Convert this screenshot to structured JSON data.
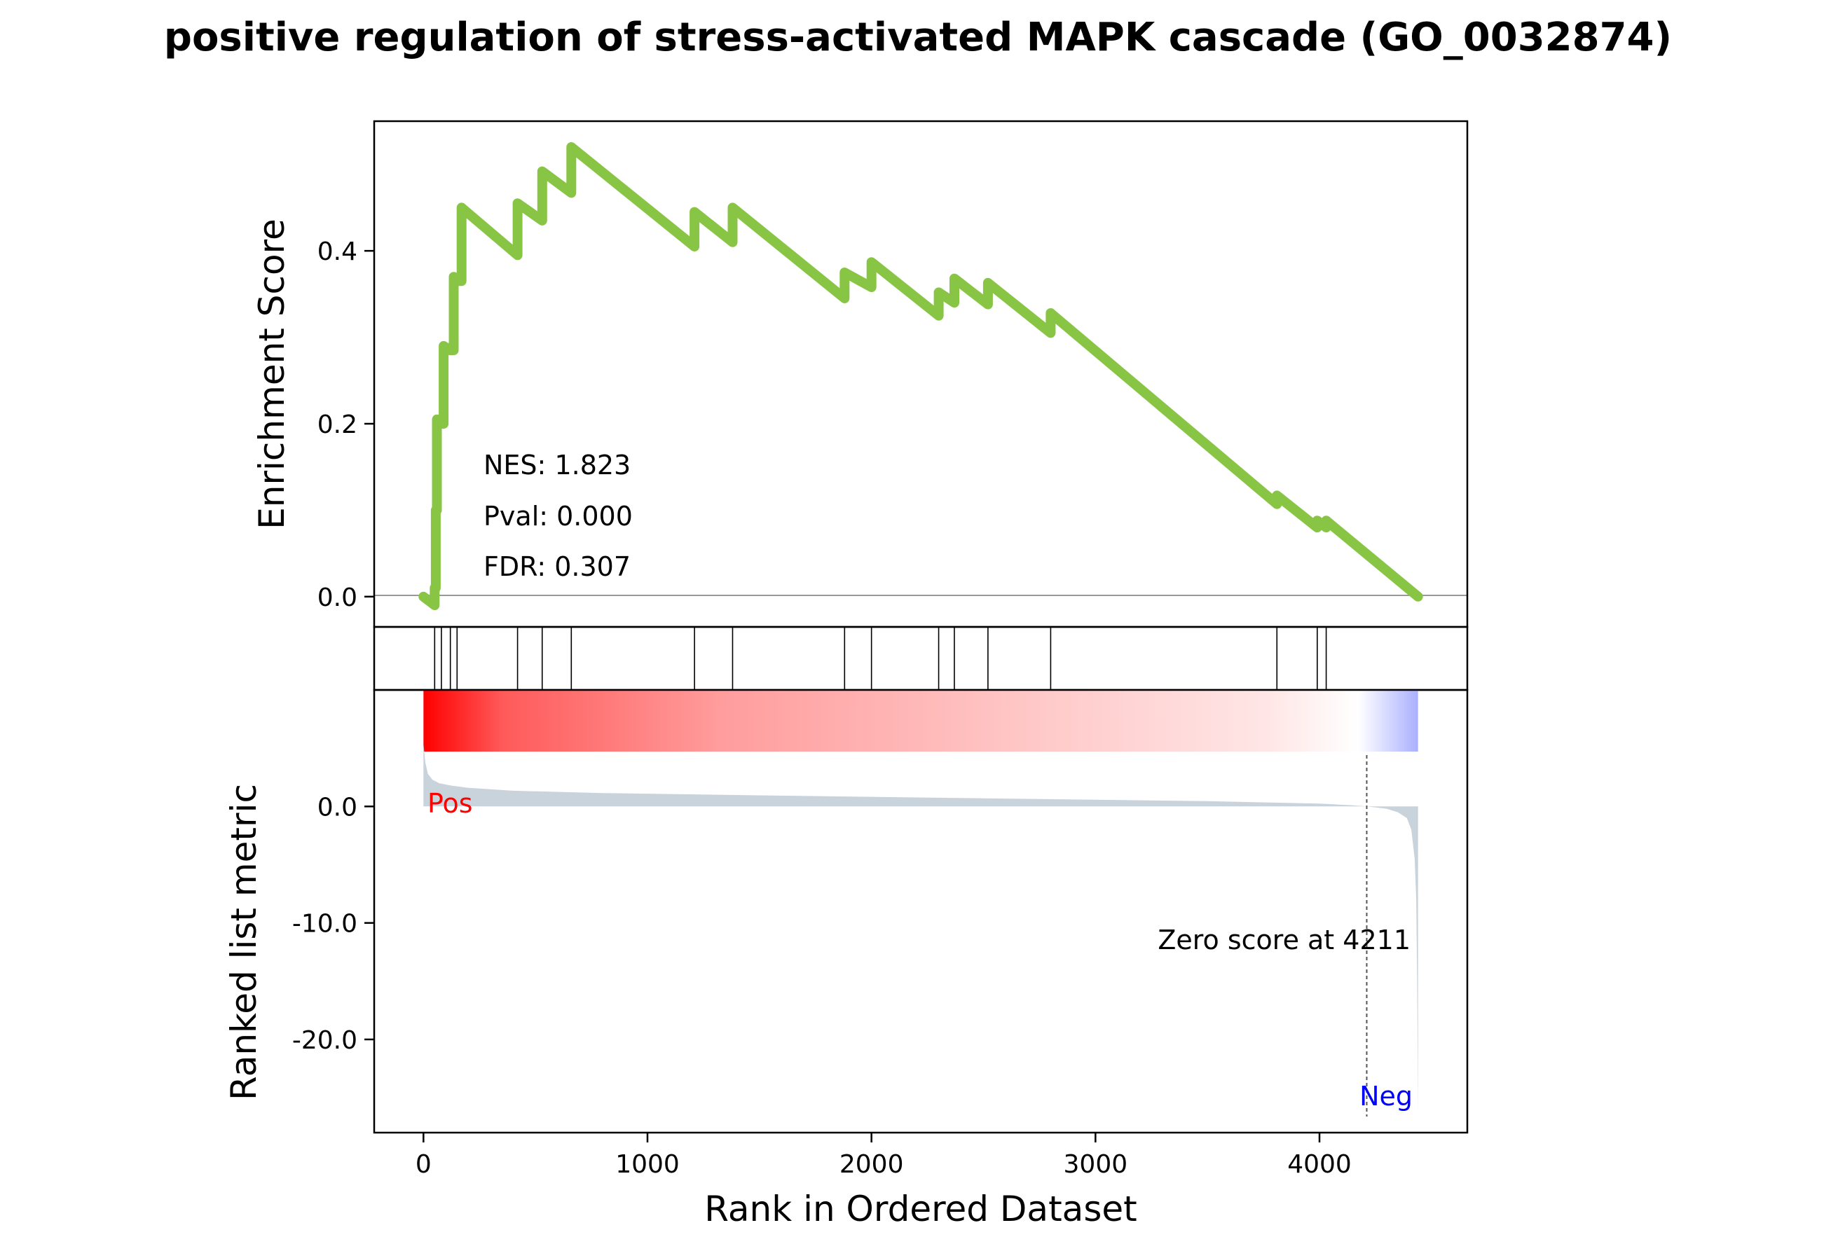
{
  "chart_data": {
    "type": "line",
    "title": "positive regulation of stress-activated MAPK cascade (GO_0032874)",
    "xlabel": "Rank in Ordered Dataset",
    "x_ticks": [
      0,
      1000,
      2000,
      3000,
      4000
    ],
    "xlim": [
      -220,
      4660
    ],
    "colors": {
      "es_line": "#88c544",
      "hits": "#000000",
      "metric_fill": "#c9d3dc",
      "zero_line": "#999999",
      "pos_label": "#ff0000",
      "neg_label": "#0000ff",
      "gradient_red": "#ff0000",
      "gradient_white": "#ffffff",
      "gradient_blue": "#aab0ff"
    },
    "enrichment_panel": {
      "ylabel": "Enrichment Score",
      "ylim": [
        -0.035,
        0.55
      ],
      "y_ticks": [
        0.0,
        0.2,
        0.4
      ],
      "y_tick_labels": [
        "0.0",
        "0.2",
        "0.4"
      ],
      "stats": [
        "NES: 1.823",
        "Pval: 0.000",
        "FDR: 0.307"
      ],
      "series": [
        {
          "x": [
            0,
            50,
            50,
            55,
            55,
            60,
            60,
            80,
            80,
            90,
            90,
            120,
            120,
            135,
            135,
            150,
            150,
            170,
            170,
            420,
            420,
            530,
            530,
            660,
            660,
            1210,
            1210,
            1380,
            1380,
            1880,
            1880,
            2000,
            2000,
            2300,
            2300,
            2370,
            2370,
            2520,
            2520,
            2800,
            2800,
            3810,
            3810,
            3990,
            3990,
            4030,
            4030,
            4440
          ],
          "y": [
            0.0,
            -0.01,
            0.01,
            0.01,
            0.1,
            0.1,
            0.205,
            0.2,
            0.2,
            0.2,
            0.29,
            0.285,
            0.285,
            0.285,
            0.37,
            0.365,
            0.365,
            0.365,
            0.45,
            0.395,
            0.455,
            0.435,
            0.492,
            0.467,
            0.52,
            0.405,
            0.445,
            0.41,
            0.45,
            0.345,
            0.375,
            0.358,
            0.387,
            0.325,
            0.352,
            0.34,
            0.368,
            0.338,
            0.363,
            0.305,
            0.328,
            0.107,
            0.117,
            0.08,
            0.088,
            0.08,
            0.088,
            0.0
          ]
        }
      ]
    },
    "hits": [
      50,
      80,
      120,
      150,
      420,
      530,
      660,
      1210,
      1380,
      1880,
      2000,
      2300,
      2370,
      2520,
      2800,
      3810,
      3990,
      4030
    ],
    "metric_panel": {
      "ylabel": "Ranked list metric",
      "ylim": [
        -28,
        10
      ],
      "y_ticks": [
        0.0,
        -10.0,
        -20.0
      ],
      "y_tick_labels": [
        "0.0",
        "-10.0",
        "-20.0"
      ],
      "pos_label": "Pos",
      "neg_label": "Neg",
      "zero_cross_rank": 4211,
      "zero_label": "Zero score at 4211",
      "n_genes": 4440,
      "metric_profile": {
        "x": [
          0,
          8,
          20,
          40,
          70,
          120,
          200,
          400,
          800,
          1500,
          2500,
          3500,
          4000,
          4150,
          4211,
          4300,
          4350,
          4390,
          4410,
          4425,
          4432,
          4436,
          4440
        ],
        "y": [
          5.4,
          3.8,
          2.8,
          2.3,
          2.0,
          1.8,
          1.6,
          1.35,
          1.15,
          0.95,
          0.7,
          0.45,
          0.25,
          0.1,
          0.0,
          -0.2,
          -0.5,
          -1.0,
          -2.0,
          -4.5,
          -8.0,
          -15.0,
          -26.5
        ]
      }
    }
  }
}
